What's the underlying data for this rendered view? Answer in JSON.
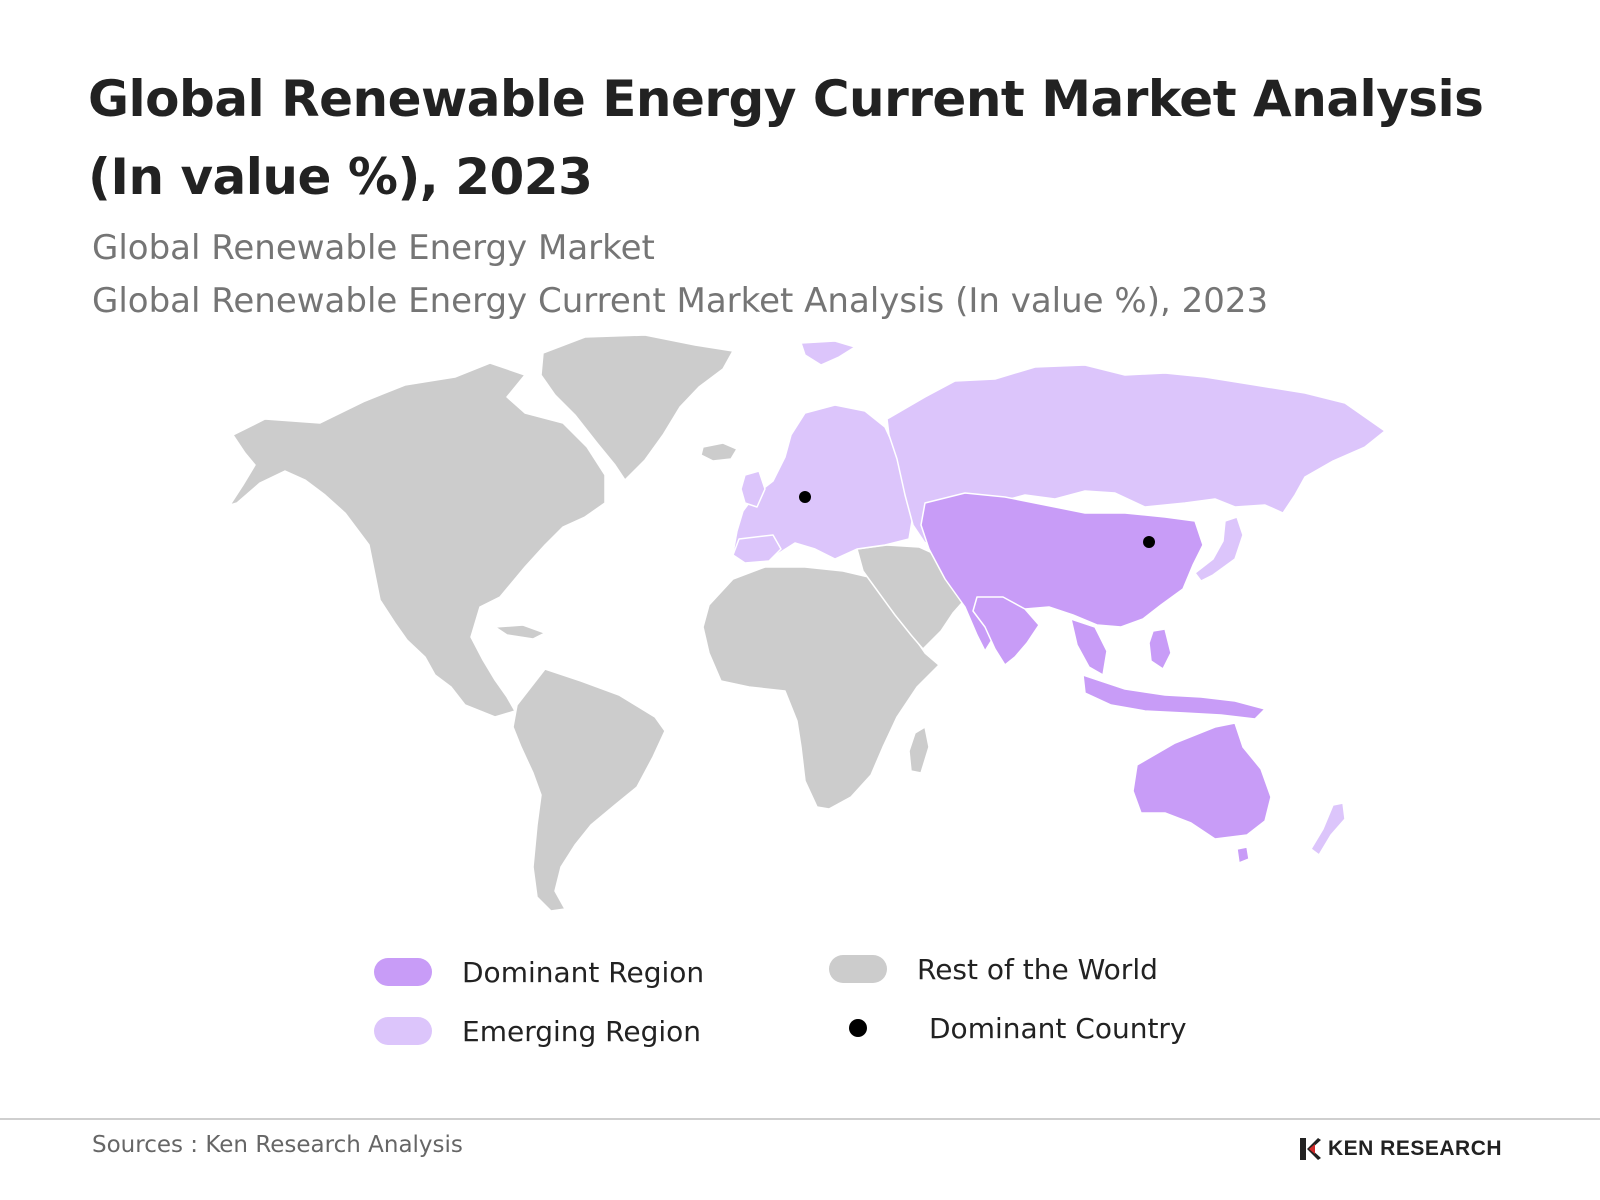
{
  "title": "Global Renewable Energy Current Market Analysis (In value %), 2023",
  "subtitle_1": "Global Renewable Energy Market",
  "subtitle_2": "Global Renewable Energy Current Market Analysis (In value %), 2023",
  "colors": {
    "dominant_region": "#c89cf7",
    "emerging_region": "#dcc5fb",
    "rest_of_world": "#cccccc",
    "dominant_country": "#000000",
    "border": "#ffffff"
  },
  "legend": {
    "dominant_region": "Dominant Region",
    "emerging_region": "Emerging Region",
    "rest_of_world": "Rest of the World",
    "dominant_country": "Dominant Country"
  },
  "map": {
    "regions": [
      {
        "name": "North America",
        "category": "rest_of_world"
      },
      {
        "name": "Greenland",
        "category": "rest_of_world"
      },
      {
        "name": "South America",
        "category": "rest_of_world"
      },
      {
        "name": "Africa",
        "category": "rest_of_world"
      },
      {
        "name": "Middle East",
        "category": "rest_of_world"
      },
      {
        "name": "Europe",
        "category": "emerging_region"
      },
      {
        "name": "Russia",
        "category": "emerging_region"
      },
      {
        "name": "Japan",
        "category": "emerging_region"
      },
      {
        "name": "New Zealand",
        "category": "emerging_region"
      },
      {
        "name": "China",
        "category": "dominant_region"
      },
      {
        "name": "India",
        "category": "dominant_region"
      },
      {
        "name": "Southeast Asia",
        "category": "dominant_region"
      },
      {
        "name": "Australia",
        "category": "dominant_region"
      }
    ],
    "dominant_countries": [
      "Germany",
      "China"
    ]
  },
  "source": "Sources : Ken Research Analysis",
  "brand": "KEN RESEARCH",
  "icons": {
    "brand_logo": "ken-research-logo-icon"
  }
}
